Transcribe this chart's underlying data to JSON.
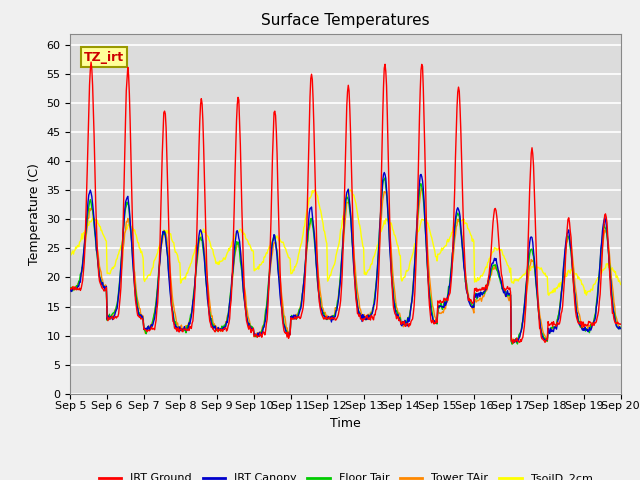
{
  "title": "Surface Temperatures",
  "xlabel": "Time",
  "ylabel": "Temperature (C)",
  "ylim": [
    0,
    62
  ],
  "yticks": [
    0,
    5,
    10,
    15,
    20,
    25,
    30,
    35,
    40,
    45,
    50,
    55,
    60
  ],
  "num_days": 15,
  "points_per_day": 48,
  "bg_color": "#dcdcdc",
  "fig_color": "#f0f0f0",
  "grid_color": "#ffffff",
  "series_colors": {
    "IRT Ground": "#ff0000",
    "IRT Canopy": "#0000cc",
    "Floor Tair": "#00cc00",
    "Tower TAir": "#ff8800",
    "TsoilD_2cm": "#ffff00"
  },
  "annotation_text": "TZ_irt",
  "annotation_color": "#cc0000",
  "annotation_bg": "#ffff99",
  "annotation_border": "#999900",
  "day_peaks_irt_ground": [
    57,
    56,
    49,
    51,
    51,
    49,
    55,
    53,
    57,
    57,
    53,
    32,
    42,
    30,
    31
  ],
  "day_mins_irt_ground": [
    18,
    13,
    11,
    11,
    11,
    10,
    13,
    13,
    13,
    12,
    16,
    18,
    9,
    12,
    12
  ],
  "day_peaks_canopy": [
    35,
    34,
    28,
    28,
    28,
    27,
    32,
    35,
    38,
    38,
    32,
    23,
    27,
    28,
    30
  ],
  "day_mins_canopy": [
    18,
    13,
    11,
    11,
    11,
    10,
    13,
    13,
    13,
    12,
    15,
    17,
    9,
    11,
    11
  ],
  "day_peaks_floor": [
    33,
    33,
    28,
    27,
    26,
    27,
    30,
    34,
    37,
    36,
    31,
    22,
    25,
    27,
    29
  ],
  "day_mins_floor": [
    18,
    13,
    11,
    11,
    11,
    10,
    13,
    13,
    13,
    12,
    15,
    17,
    9,
    11,
    11
  ],
  "day_peaks_tower": [
    32,
    30,
    28,
    27,
    26,
    26,
    30,
    33,
    35,
    35,
    30,
    22,
    23,
    27,
    28
  ],
  "day_mins_tower": [
    18,
    13,
    11,
    11,
    11,
    10,
    13,
    13,
    13,
    12,
    14,
    16,
    9,
    11,
    11
  ],
  "day_peaks_tsoil": [
    30,
    29,
    28,
    28,
    28,
    27,
    35,
    35,
    30,
    30,
    30,
    25,
    22,
    21,
    22
  ],
  "day_mins_tsoil": [
    24,
    20,
    19,
    19,
    22,
    21,
    20,
    19,
    20,
    19,
    24,
    19,
    19,
    17,
    17
  ]
}
